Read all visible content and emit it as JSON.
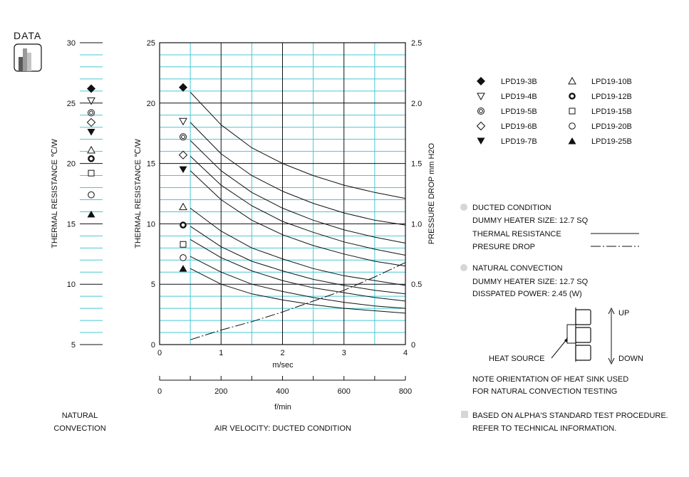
{
  "data_tab": {
    "label": "DATA"
  },
  "natural_panel": {
    "y_axis_title": "THERMAL RESISTANCE  ℃/W",
    "yticks": [
      30,
      25,
      20,
      15,
      10,
      5
    ],
    "ylim": [
      5,
      30
    ],
    "caption_line1": "NATURAL",
    "caption_line2": "CONVECTION"
  },
  "chart_data": {
    "type": "line",
    "left_axis_title": "THERMAL RESISTANCE  ℃/W",
    "right_axis_title": "PRESSURE DROP  mm H2O",
    "ylim_left": [
      0,
      25
    ],
    "yticks_left": [
      0,
      5,
      10,
      15,
      20,
      25
    ],
    "ylim_right": [
      0,
      2.5
    ],
    "yticks_right": [
      "0",
      "0.5",
      "1.0",
      "1.5",
      "2.0",
      "2.5"
    ],
    "xlim_ms": [
      0,
      4
    ],
    "xticks_ms": [
      0,
      1,
      2,
      3,
      4
    ],
    "xlabel_ms": "m/sec",
    "xlim_fmin": [
      0,
      800
    ],
    "xticks_fmin": [
      0,
      200,
      400,
      600,
      800
    ],
    "xlabel_fmin": "f/min",
    "caption": "AIR VELOCITY:  DUCTED CONDITION",
    "grid": true,
    "x": [
      0.5,
      1.0,
      1.5,
      2.0,
      2.5,
      3.0,
      3.5,
      4.0
    ],
    "series": [
      {
        "name": "LPD19-3B",
        "marker": "diamond-filled",
        "marker_value": 21.3,
        "values": [
          20.9,
          18.2,
          16.3,
          15.0,
          14.0,
          13.2,
          12.6,
          12.1
        ]
      },
      {
        "name": "LPD19-4B",
        "marker": "triangle-down-open",
        "marker_value": 18.5,
        "values": [
          18.4,
          15.8,
          14.0,
          12.7,
          11.7,
          10.9,
          10.3,
          9.9
        ]
      },
      {
        "name": "LPD19-5B",
        "marker": "double-circle",
        "marker_value": 17.2,
        "values": [
          16.9,
          14.4,
          12.6,
          11.3,
          10.3,
          9.5,
          8.9,
          8.4
        ]
      },
      {
        "name": "LPD19-6B",
        "marker": "diamond-open",
        "marker_value": 15.7,
        "values": [
          15.6,
          13.2,
          11.5,
          10.2,
          9.3,
          8.5,
          7.9,
          7.4
        ]
      },
      {
        "name": "LPD19-7B",
        "marker": "triangle-down-filled",
        "marker_value": 14.5,
        "values": [
          14.4,
          12.0,
          10.3,
          9.1,
          8.2,
          7.5,
          6.9,
          6.5
        ]
      },
      {
        "name": "LPD19-10B",
        "marker": "triangle-up-open",
        "marker_value": 11.4,
        "values": [
          11.3,
          9.4,
          8.0,
          7.1,
          6.3,
          5.7,
          5.3,
          4.9
        ]
      },
      {
        "name": "LPD19-12B",
        "marker": "circle-bold",
        "marker_value": 9.9,
        "values": [
          9.8,
          8.1,
          6.9,
          6.1,
          5.4,
          4.9,
          4.5,
          4.2
        ]
      },
      {
        "name": "LPD19-15B",
        "marker": "square-open",
        "marker_value": 8.3,
        "values": [
          8.7,
          7.2,
          6.1,
          5.3,
          4.7,
          4.3,
          3.9,
          3.6
        ]
      },
      {
        "name": "LPD19-20B",
        "marker": "circle-open",
        "marker_value": 7.2,
        "values": [
          7.3,
          6.0,
          5.0,
          4.4,
          3.9,
          3.5,
          3.2,
          3.0
        ]
      },
      {
        "name": "LPD19-25B",
        "marker": "triangle-up-filled",
        "marker_value": 6.3,
        "values": [
          6.3,
          5.0,
          4.2,
          3.7,
          3.3,
          3.0,
          2.8,
          2.6
        ]
      }
    ],
    "pressure_drop": {
      "x": [
        0.5,
        1.0,
        1.5,
        2.0,
        2.5,
        3.0,
        3.5,
        4.0
      ],
      "values": [
        0.04,
        0.12,
        0.19,
        0.27,
        0.36,
        0.45,
        0.56,
        0.68
      ]
    },
    "natural_markers": [
      {
        "name": "LPD19-3B",
        "value": 26.2
      },
      {
        "name": "LPD19-4B",
        "value": 25.2
      },
      {
        "name": "LPD19-5B",
        "value": 24.2
      },
      {
        "name": "LPD19-6B",
        "value": 23.4
      },
      {
        "name": "LPD19-7B",
        "value": 22.6
      },
      {
        "name": "LPD19-10B",
        "value": 21.1
      },
      {
        "name": "LPD19-12B",
        "value": 20.4
      },
      {
        "name": "LPD19-15B",
        "value": 19.2
      },
      {
        "name": "LPD19-20B",
        "value": 17.4
      },
      {
        "name": "LPD19-25B",
        "value": 15.8
      }
    ]
  },
  "legend": [
    {
      "name": "LPD19-3B",
      "marker": "diamond-filled"
    },
    {
      "name": "LPD19-10B",
      "marker": "triangle-up-open"
    },
    {
      "name": "LPD19-4B",
      "marker": "triangle-down-open"
    },
    {
      "name": "LPD19-12B",
      "marker": "circle-bold"
    },
    {
      "name": "LPD19-5B",
      "marker": "double-circle"
    },
    {
      "name": "LPD19-15B",
      "marker": "square-open"
    },
    {
      "name": "LPD19-6B",
      "marker": "diamond-open"
    },
    {
      "name": "LPD19-20B",
      "marker": "circle-open"
    },
    {
      "name": "LPD19-7B",
      "marker": "triangle-down-filled"
    },
    {
      "name": "LPD19-25B",
      "marker": "triangle-up-filled"
    }
  ],
  "notes": {
    "ducted_title": "DUCTED CONDITION",
    "ducted_heater": "DUMMY HEATER SIZE: 12.7 SQ",
    "thermal_resistance": "THERMAL RESISTANCE",
    "pressure_drop": "PRESURE DROP",
    "natural_title": "NATURAL CONVECTION",
    "natural_heater": "DUMMY HEATER SIZE: 12.7 SQ",
    "dissipated_power": "DISSPATED POWER: 2.45 (W)",
    "up": "UP",
    "down": "DOWN",
    "heat_source": "HEAT SOURCE",
    "orientation_line1": "NOTE ORIENTATION OF HEAT SINK USED",
    "orientation_line2": "FOR NATURAL CONVECTION TESTING",
    "based_line1": "BASED ON ALPHA'S STANDARD TEST PROCEDURE.",
    "based_line2": "REFER TO TECHNICAL INFORMATION."
  },
  "colors": {
    "grid_minor": "#47c8d4",
    "grid_major": "#111111",
    "ink": "#111111",
    "bullet": "#d6d6d6",
    "icon_gray_dark": "#5a5a5a",
    "icon_gray_light": "#b0b0b0"
  }
}
